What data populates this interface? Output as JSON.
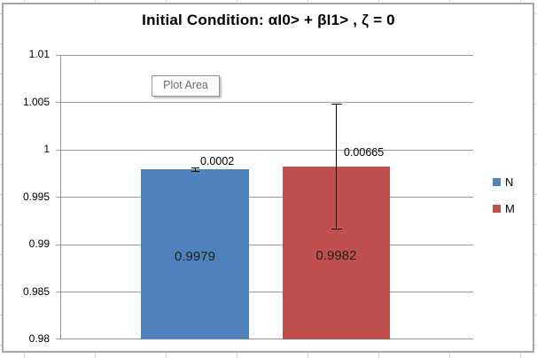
{
  "chart_data": {
    "type": "bar",
    "title": "Initial Condition: αI0> + βI1> , ζ =  0",
    "categories": [
      ""
    ],
    "series": [
      {
        "name": "N",
        "value": 0.9979,
        "error": 0.0002,
        "value_label": "0.9979",
        "error_label": "0.0002",
        "color": "#4F81BD"
      },
      {
        "name": "M",
        "value": 0.9982,
        "error": 0.00665,
        "value_label": "0.9982",
        "error_label": "0.00665",
        "color": "#C0504D"
      }
    ],
    "ylim": [
      0.98,
      1.01
    ],
    "ytick_labels": [
      "1.01",
      "1.005",
      "1",
      "0.995",
      "0.99",
      "0.985",
      "0.98"
    ],
    "grid": true,
    "legend_position": "right",
    "error_bars": true
  },
  "tooltip": {
    "label": "Plot Area"
  },
  "legend": {
    "items": [
      {
        "label": "N",
        "color": "#4F81BD"
      },
      {
        "label": "M",
        "color": "#C0504D"
      }
    ]
  },
  "colors": {
    "bar_blue": "#4F81BD",
    "bar_red": "#C0504D",
    "gridline": "#9b9b9b",
    "chart_border": "#a6a6a6"
  }
}
